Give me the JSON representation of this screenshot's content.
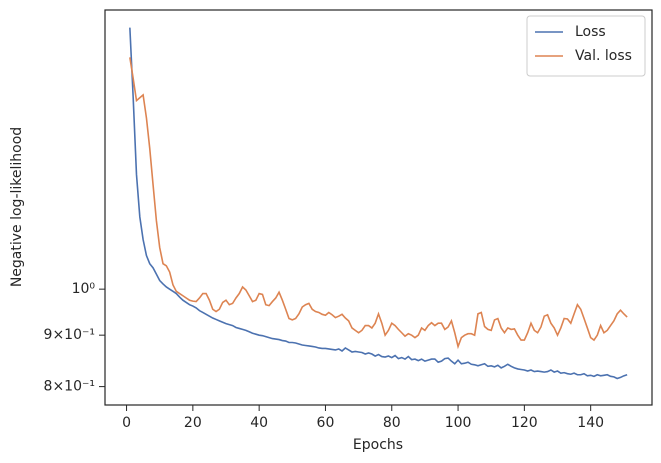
{
  "chart_data": {
    "type": "line",
    "xlabel": "Epochs",
    "ylabel": "Negative log-likelihood",
    "x": [
      1,
      2,
      3,
      4,
      5,
      6,
      7,
      8,
      9,
      10,
      11,
      12,
      13,
      14,
      15,
      16,
      17,
      18,
      19,
      20,
      21,
      22,
      23,
      24,
      25,
      26,
      27,
      28,
      29,
      30,
      31,
      32,
      33,
      34,
      35,
      36,
      37,
      38,
      39,
      40,
      41,
      42,
      43,
      44,
      45,
      46,
      47,
      48,
      49,
      50,
      51,
      52,
      53,
      54,
      55,
      56,
      57,
      58,
      59,
      60,
      61,
      62,
      63,
      64,
      65,
      66,
      67,
      68,
      69,
      70,
      71,
      72,
      73,
      74,
      75,
      76,
      77,
      78,
      79,
      80,
      81,
      82,
      83,
      84,
      85,
      86,
      87,
      88,
      89,
      90,
      91,
      92,
      93,
      94,
      95,
      96,
      97,
      98,
      99,
      100,
      101,
      102,
      103,
      104,
      105,
      106,
      107,
      108,
      109,
      110,
      111,
      112,
      113,
      114,
      115,
      116,
      117,
      118,
      119,
      120,
      121,
      122,
      123,
      124,
      125,
      126,
      127,
      128,
      129,
      130,
      131,
      132,
      133,
      134,
      135,
      136,
      137,
      138,
      139,
      140,
      141,
      142,
      143,
      144,
      145,
      146,
      147,
      148,
      149,
      150,
      151
    ],
    "series": [
      {
        "name": "Loss",
        "color": "#4c72b0",
        "values": [
          1.82,
          1.55,
          1.3,
          1.18,
          1.12,
          1.08,
          1.06,
          1.05,
          1.035,
          1.02,
          1.012,
          1.005,
          1.0,
          0.995,
          0.99,
          0.982,
          0.975,
          0.97,
          0.965,
          0.962,
          0.958,
          0.952,
          0.948,
          0.944,
          0.94,
          0.936,
          0.933,
          0.93,
          0.927,
          0.924,
          0.922,
          0.92,
          0.916,
          0.914,
          0.912,
          0.91,
          0.907,
          0.904,
          0.902,
          0.9,
          0.899,
          0.897,
          0.895,
          0.893,
          0.892,
          0.891,
          0.889,
          0.888,
          0.885,
          0.885,
          0.884,
          0.882,
          0.88,
          0.879,
          0.878,
          0.877,
          0.876,
          0.874,
          0.873,
          0.873,
          0.872,
          0.871,
          0.87,
          0.872,
          0.868,
          0.874,
          0.87,
          0.866,
          0.867,
          0.866,
          0.865,
          0.862,
          0.864,
          0.862,
          0.858,
          0.861,
          0.857,
          0.856,
          0.858,
          0.855,
          0.859,
          0.853,
          0.855,
          0.852,
          0.857,
          0.851,
          0.852,
          0.849,
          0.852,
          0.848,
          0.85,
          0.852,
          0.852,
          0.846,
          0.848,
          0.853,
          0.854,
          0.848,
          0.843,
          0.85,
          0.843,
          0.844,
          0.846,
          0.842,
          0.841,
          0.839,
          0.841,
          0.843,
          0.838,
          0.839,
          0.837,
          0.84,
          0.835,
          0.838,
          0.842,
          0.838,
          0.835,
          0.833,
          0.832,
          0.831,
          0.829,
          0.831,
          0.828,
          0.829,
          0.828,
          0.827,
          0.828,
          0.831,
          0.827,
          0.829,
          0.825,
          0.826,
          0.824,
          0.823,
          0.825,
          0.822,
          0.822,
          0.824,
          0.82,
          0.821,
          0.819,
          0.822,
          0.82,
          0.821,
          0.822,
          0.819,
          0.818,
          0.815,
          0.817,
          0.82,
          0.822
        ]
      },
      {
        "name": "Val. loss",
        "color": "#dd8452",
        "values": [
          1.7,
          1.62,
          1.54,
          1.55,
          1.56,
          1.48,
          1.38,
          1.27,
          1.17,
          1.1,
          1.06,
          1.055,
          1.04,
          1.01,
          0.995,
          0.99,
          0.985,
          0.98,
          0.975,
          0.973,
          0.972,
          0.98,
          0.99,
          0.99,
          0.975,
          0.955,
          0.95,
          0.955,
          0.97,
          0.975,
          0.965,
          0.968,
          0.98,
          0.99,
          1.005,
          0.998,
          0.985,
          0.972,
          0.975,
          0.99,
          0.988,
          0.965,
          0.963,
          0.972,
          0.98,
          0.993,
          0.975,
          0.955,
          0.935,
          0.932,
          0.935,
          0.945,
          0.96,
          0.965,
          0.968,
          0.955,
          0.95,
          0.948,
          0.944,
          0.942,
          0.948,
          0.943,
          0.937,
          0.94,
          0.944,
          0.936,
          0.93,
          0.915,
          0.91,
          0.905,
          0.91,
          0.92,
          0.92,
          0.915,
          0.925,
          0.945,
          0.925,
          0.9,
          0.91,
          0.925,
          0.92,
          0.912,
          0.905,
          0.898,
          0.903,
          0.9,
          0.895,
          0.9,
          0.915,
          0.91,
          0.92,
          0.926,
          0.92,
          0.925,
          0.925,
          0.912,
          0.917,
          0.93,
          0.905,
          0.877,
          0.895,
          0.9,
          0.903,
          0.903,
          0.9,
          0.945,
          0.948,
          0.918,
          0.912,
          0.91,
          0.932,
          0.935,
          0.915,
          0.905,
          0.915,
          0.912,
          0.913,
          0.9,
          0.89,
          0.89,
          0.905,
          0.925,
          0.91,
          0.905,
          0.917,
          0.94,
          0.943,
          0.925,
          0.915,
          0.9,
          0.915,
          0.935,
          0.934,
          0.925,
          0.945,
          0.965,
          0.955,
          0.935,
          0.915,
          0.895,
          0.89,
          0.9,
          0.92,
          0.905,
          0.91,
          0.92,
          0.93,
          0.945,
          0.953,
          0.945,
          0.938
        ]
      }
    ],
    "xlim": [
      -6.5,
      158.5
    ],
    "xticks": [
      0,
      20,
      40,
      60,
      80,
      100,
      120,
      140
    ],
    "ylim": [
      0.767,
      1.895
    ],
    "yscale": "log",
    "yticks": [
      {
        "value": 1,
        "label": "10⁰"
      },
      {
        "value": 0.9,
        "label": "9×10⁻¹"
      },
      {
        "value": 0.8,
        "label": "8×10⁻¹"
      }
    ],
    "grid": false,
    "legend": "upper right"
  }
}
